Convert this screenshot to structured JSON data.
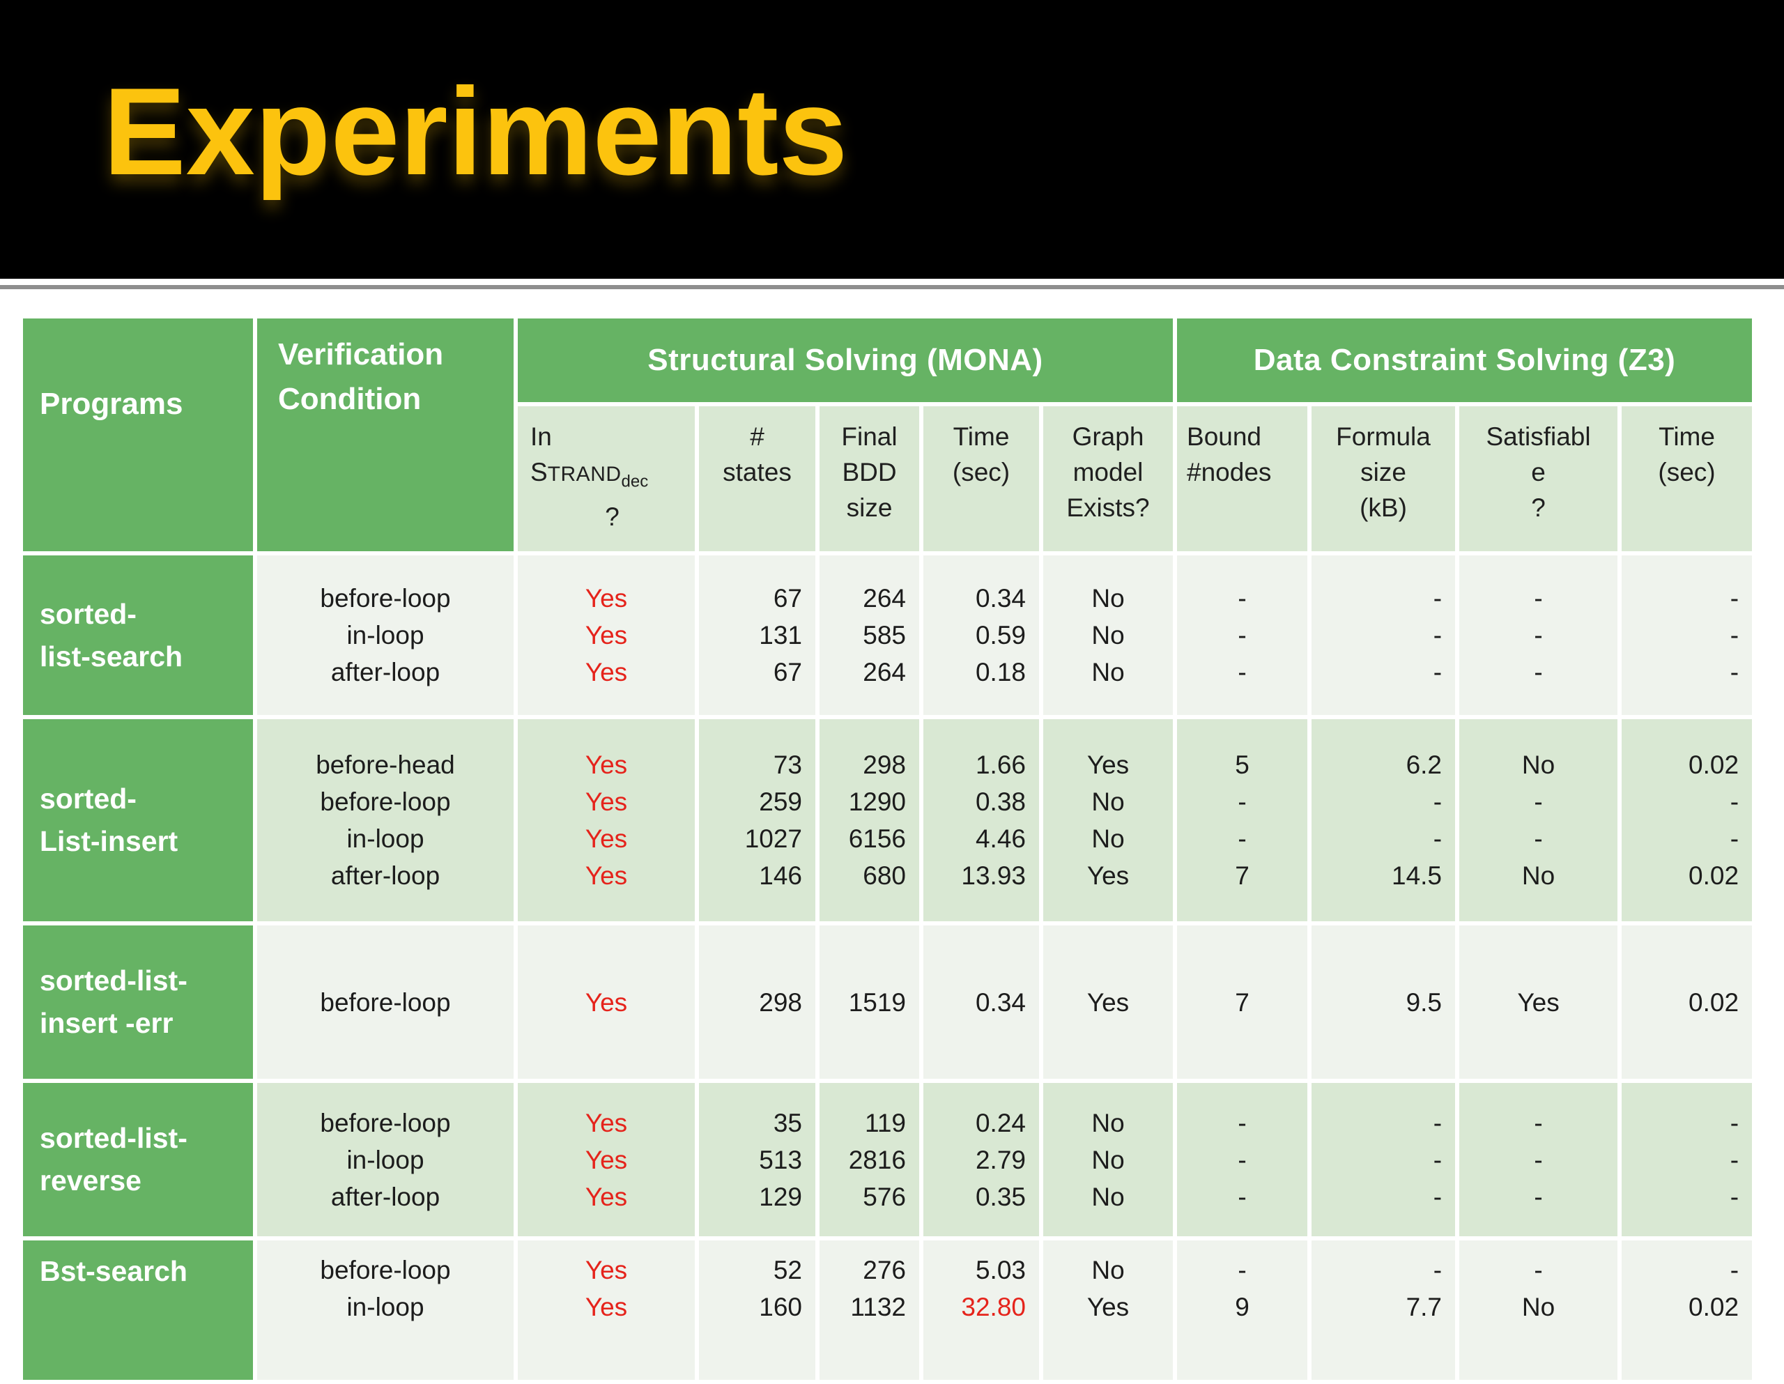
{
  "slide": {
    "title": "Experiments"
  },
  "table": {
    "header": {
      "programs": "Programs",
      "verification_condition": "Verification Condition",
      "group_mona": "Structural Solving (MONA)",
      "group_z3": "Data Constraint Solving (Z3)"
    },
    "strand_header": {
      "pre": "In",
      "name_cap": "S",
      "name_rest": "TRAND",
      "subscript": "dec",
      "question": "?"
    },
    "columns": [
      {
        "key": "in_strand",
        "align": "center",
        "red_all": true,
        "header_type": "strand"
      },
      {
        "key": "states",
        "align": "right",
        "header_lines": [
          "#",
          "states"
        ]
      },
      {
        "key": "bdd",
        "align": "right",
        "header_lines": [
          "Final",
          "BDD",
          "size"
        ]
      },
      {
        "key": "time_mona",
        "align": "right",
        "header_lines": [
          "Time",
          "(sec)"
        ]
      },
      {
        "key": "graph_model",
        "align": "center",
        "header_lines": [
          "Graph",
          "model",
          "Exists?"
        ]
      },
      {
        "key": "bound_nodes",
        "align": "center",
        "header_lines": [
          "Bound",
          "#nodes"
        ],
        "header_align": "left"
      },
      {
        "key": "formula_kb",
        "align": "right",
        "header_lines": [
          "Formula",
          "size",
          "(kB)"
        ]
      },
      {
        "key": "satisfiable",
        "align": "center",
        "header_lines": [
          "Satisfiabl",
          "e",
          "?"
        ]
      },
      {
        "key": "time_z3",
        "align": "right",
        "header_lines": [
          "Time",
          "(sec)"
        ]
      }
    ],
    "rows": [
      {
        "program": [
          "sorted-",
          "list-search"
        ],
        "conditions": [
          "before-loop",
          "in-loop",
          "after-loop"
        ],
        "in_strand": [
          "Yes",
          "Yes",
          "Yes"
        ],
        "states": [
          "67",
          "131",
          "67"
        ],
        "bdd": [
          "264",
          "585",
          "264"
        ],
        "time_mona": [
          "0.34",
          "0.59",
          "0.18"
        ],
        "graph_model": [
          "No",
          "No",
          "No"
        ],
        "bound_nodes": [
          "-",
          "-",
          "-"
        ],
        "formula_kb": [
          "-",
          "-",
          "-"
        ],
        "satisfiable": [
          "-",
          "-",
          "-"
        ],
        "time_z3": [
          "-",
          "-",
          "-"
        ]
      },
      {
        "program": [
          "sorted-",
          "List-insert"
        ],
        "conditions": [
          "before-head",
          "before-loop",
          "in-loop",
          "after-loop"
        ],
        "in_strand": [
          "Yes",
          "Yes",
          "Yes",
          "Yes"
        ],
        "states": [
          "73",
          "259",
          "1027",
          "146"
        ],
        "bdd": [
          "298",
          "1290",
          "6156",
          "680"
        ],
        "time_mona": [
          "1.66",
          "0.38",
          "4.46",
          "13.93"
        ],
        "graph_model": [
          "Yes",
          "No",
          "No",
          "Yes"
        ],
        "bound_nodes": [
          "5",
          "-",
          "-",
          "7"
        ],
        "formula_kb": [
          "6.2",
          "-",
          "-",
          "14.5"
        ],
        "satisfiable": [
          "No",
          "-",
          "-",
          "No"
        ],
        "time_z3": [
          "0.02",
          "-",
          "-",
          "0.02"
        ]
      },
      {
        "program": [
          "sorted-list-",
          "insert -err"
        ],
        "conditions": [
          "before-loop"
        ],
        "in_strand": [
          "Yes"
        ],
        "states": [
          "298"
        ],
        "bdd": [
          "1519"
        ],
        "time_mona": [
          "0.34"
        ],
        "graph_model": [
          "Yes"
        ],
        "bound_nodes": [
          "7"
        ],
        "formula_kb": [
          "9.5"
        ],
        "satisfiable": [
          "Yes"
        ],
        "time_z3": [
          "0.02"
        ]
      },
      {
        "program": [
          "sorted-list-",
          "reverse"
        ],
        "conditions": [
          "before-loop",
          "in-loop",
          "after-loop"
        ],
        "in_strand": [
          "Yes",
          "Yes",
          "Yes"
        ],
        "states": [
          "35",
          "513",
          "129"
        ],
        "bdd": [
          "119",
          "2816",
          "576"
        ],
        "time_mona": [
          "0.24",
          "2.79",
          "0.35"
        ],
        "graph_model": [
          "No",
          "No",
          "No"
        ],
        "bound_nodes": [
          "-",
          "-",
          "-"
        ],
        "formula_kb": [
          "-",
          "-",
          "-"
        ],
        "satisfiable": [
          "-",
          "-",
          "-"
        ],
        "time_z3": [
          "-",
          "-",
          "-"
        ]
      },
      {
        "program": [
          "Bst-search"
        ],
        "conditions": [
          "before-loop",
          "in-loop"
        ],
        "in_strand": [
          "Yes",
          "Yes"
        ],
        "states": [
          "52",
          "160"
        ],
        "bdd": [
          "276",
          "1132"
        ],
        "time_mona": [
          "5.03",
          "32.80"
        ],
        "graph_model": [
          "No",
          "Yes"
        ],
        "bound_nodes": [
          "-",
          "9"
        ],
        "formula_kb": [
          "-",
          "7.7"
        ],
        "satisfiable": [
          "-",
          "No"
        ],
        "time_z3": [
          "-",
          "0.02"
        ],
        "red": {
          "time_mona": [
            1
          ]
        }
      }
    ]
  }
}
